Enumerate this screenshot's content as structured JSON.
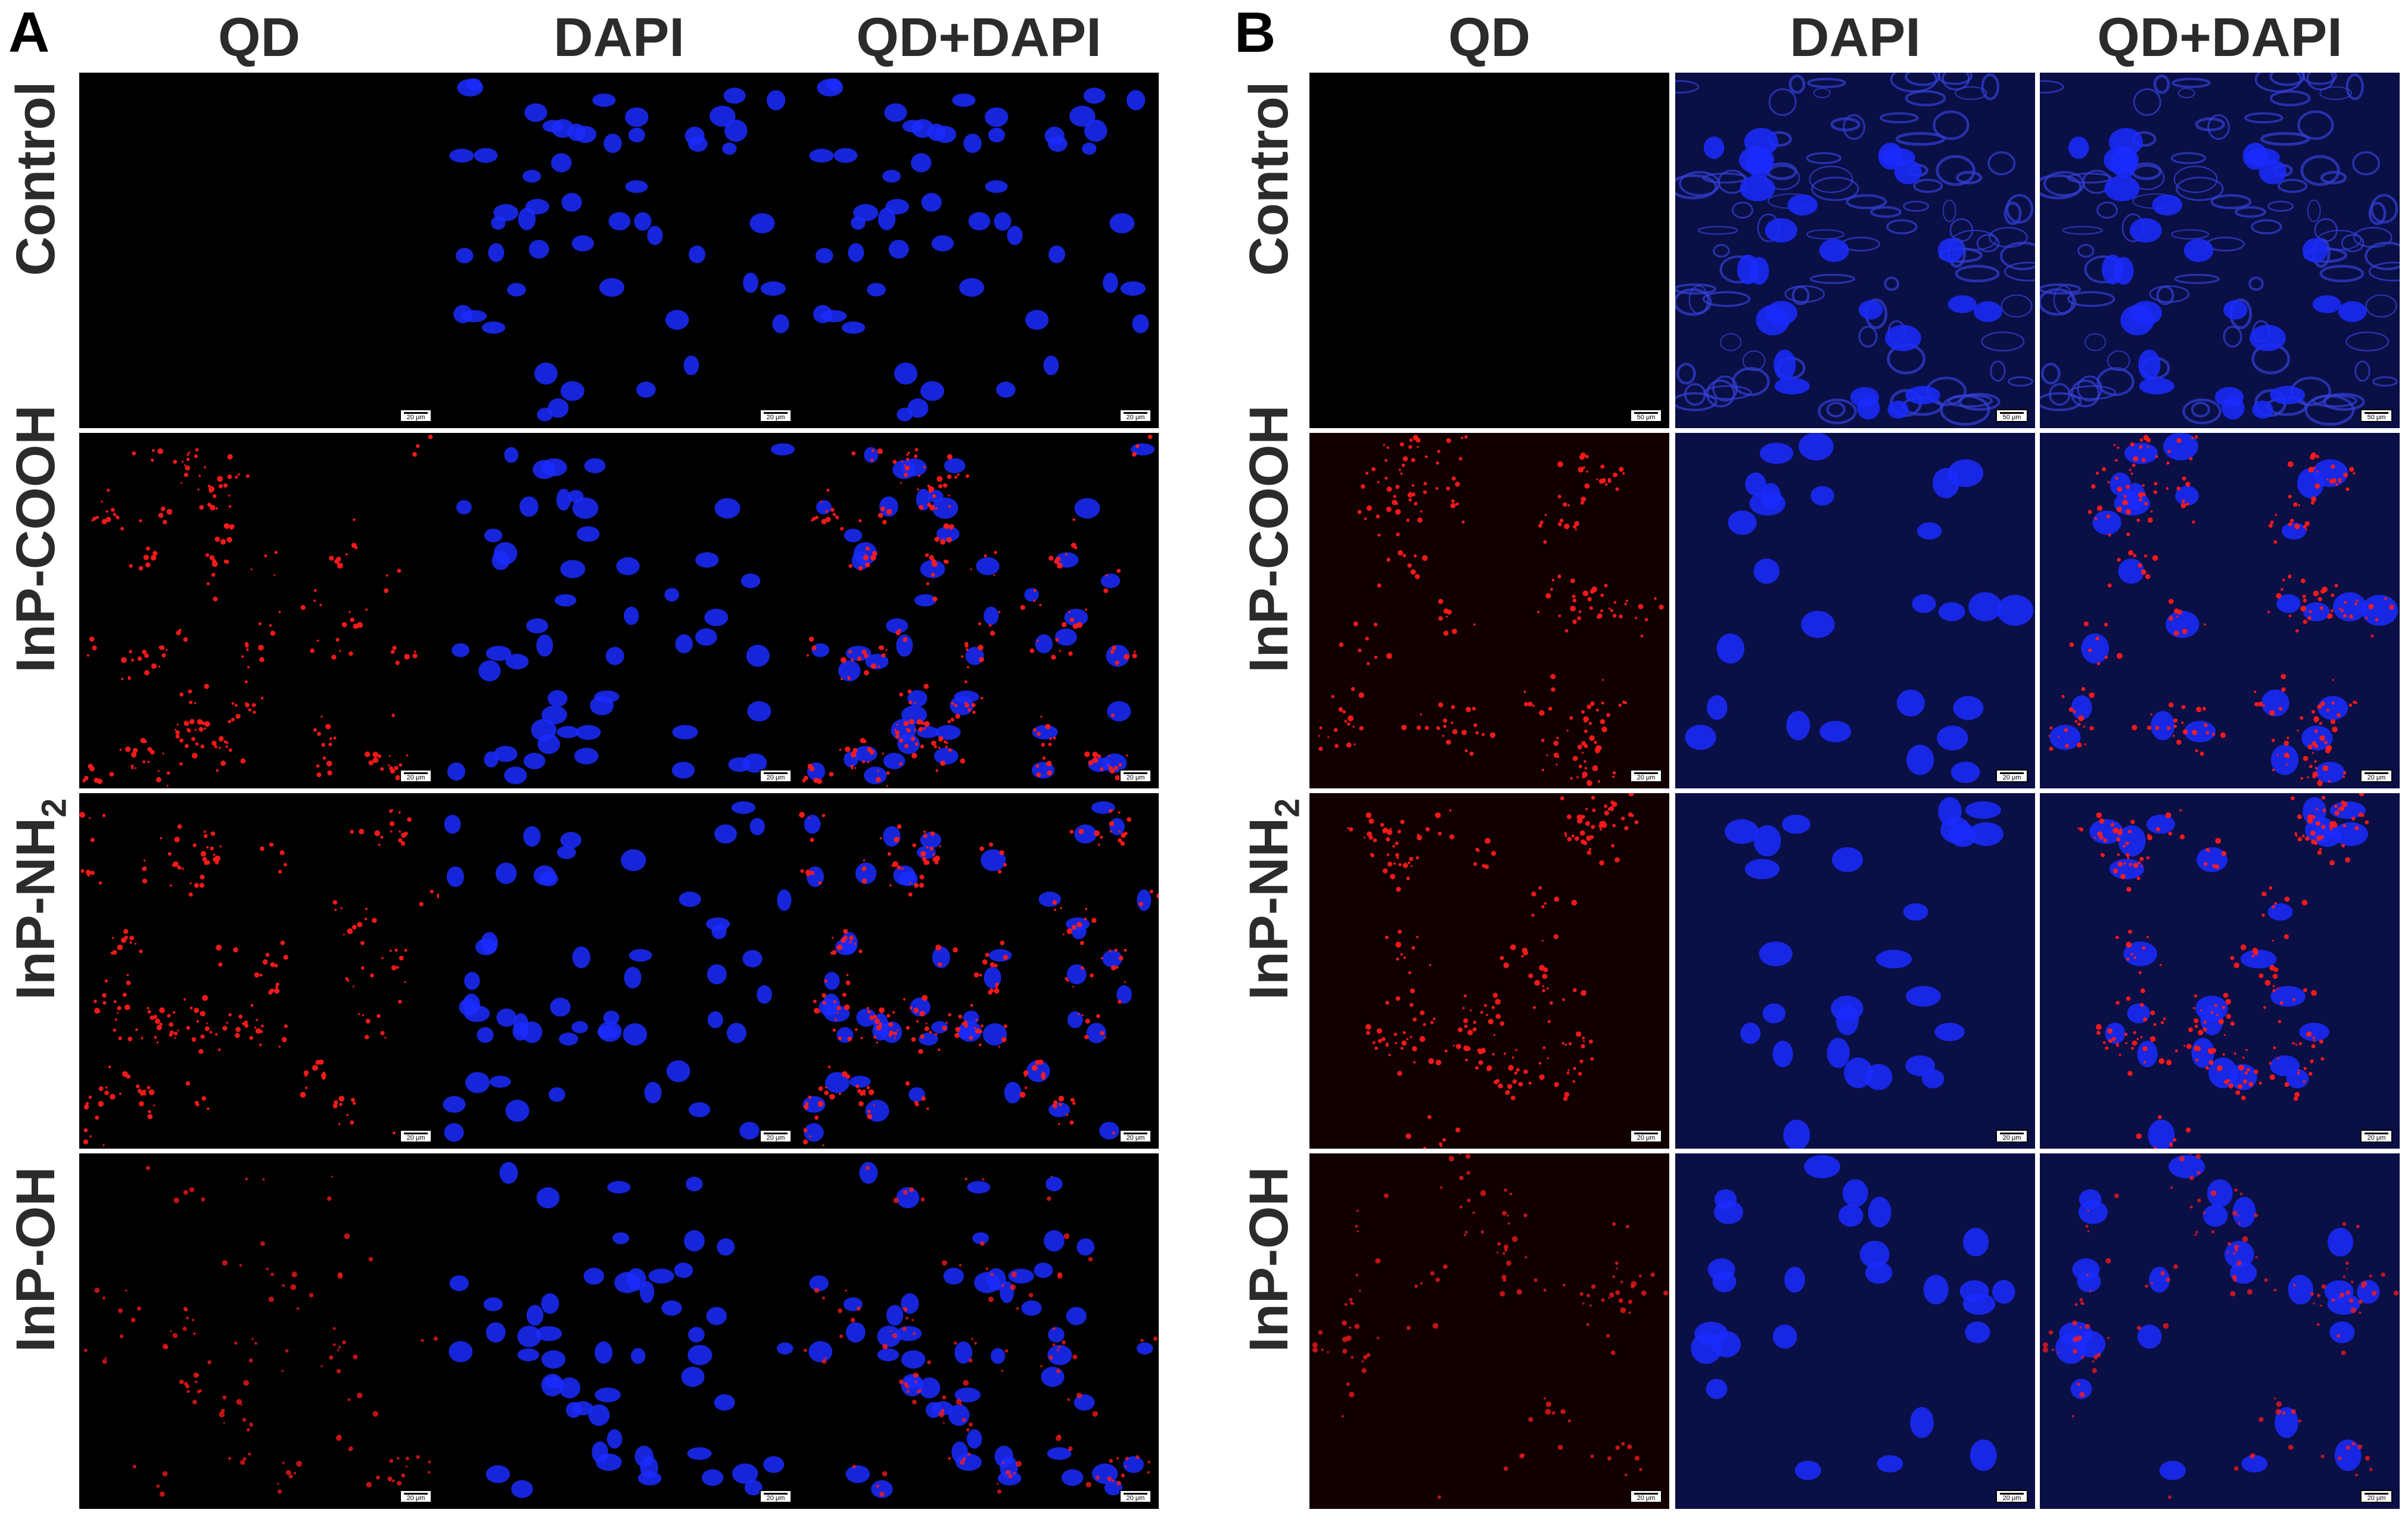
{
  "panels": [
    {
      "letter": "A",
      "columns": [
        "QD",
        "DAPI",
        "QD+DAPI"
      ],
      "rows": [
        {
          "label": "Control",
          "scales": [
            "20 μm",
            "20 μm",
            "20 μm"
          ]
        },
        {
          "label": "InP-COOH",
          "scales": [
            "20 μm",
            "20 μm",
            "20 μm"
          ]
        },
        {
          "label_main": "InP-NH",
          "label_sub": "2",
          "scales": [
            "20 μm",
            "20 μm",
            "20 μm"
          ]
        },
        {
          "label": "InP-OH",
          "scales": [
            "20 μm",
            "20 μm",
            "20 μm"
          ]
        }
      ]
    },
    {
      "letter": "B",
      "columns": [
        "QD",
        "DAPI",
        "QD+DAPI"
      ],
      "rows": [
        {
          "label": "Control",
          "scales": [
            "50 μm",
            "50 μm",
            "50 μm"
          ]
        },
        {
          "label": "InP-COOH",
          "scales": [
            "20 μm",
            "20 μm",
            "20 μm"
          ]
        },
        {
          "label_main": "InP-NH",
          "label_sub": "2",
          "scales": [
            "20 μm",
            "20 μm",
            "20 μm"
          ]
        },
        {
          "label": "InP-OH",
          "scales": [
            "20 μm",
            "20 μm",
            "20 μm"
          ]
        }
      ]
    }
  ],
  "colors": {
    "background": "#000000",
    "dapi_nucleus": "#1a2cff",
    "qd_signal": "#ff1a1a",
    "tissue_tint": "#0a0f45"
  }
}
